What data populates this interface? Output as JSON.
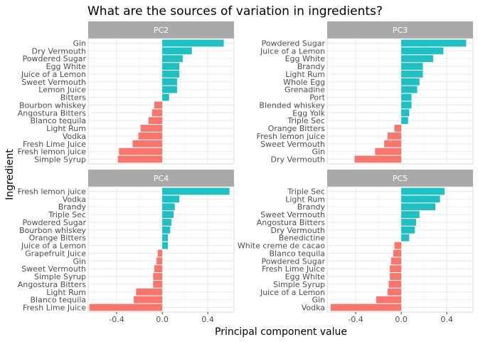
{
  "chart_data": {
    "type": "bar",
    "orientation": "horizontal",
    "title": "What are the sources of variation in ingredients?",
    "xlabel": "Principal component value",
    "ylabel": "Ingredient",
    "x_ticks": [
      "-0.4",
      "0.0",
      "0.4"
    ],
    "x_tick_values": [
      -0.4,
      0.0,
      0.4
    ],
    "xlim": [
      -0.65,
      0.63
    ],
    "grid": true,
    "legend": "none",
    "colors": {
      "positive": "#1fbfc4",
      "negative": "#f8766d",
      "strip": "#a9a9a9",
      "grid": "#ebebeb"
    },
    "panels": [
      {
        "name": "PC2",
        "categories": [
          "Gin",
          "Dry Vermouth",
          "Powdered Sugar",
          "Egg White",
          "Juice of a Lemon",
          "Sweet Vermouth",
          "Lemon Juice",
          "Bitters",
          "Bourbon whiskey",
          "Angostura Bitters",
          "Blanco tequila",
          "Light Rum",
          "Vodka",
          "Fresh Lime Juice",
          "Fresh lemon juice",
          "Simple Syrup"
        ],
        "values": [
          0.54,
          0.26,
          0.18,
          0.15,
          0.15,
          0.13,
          0.13,
          0.06,
          -0.07,
          -0.09,
          -0.12,
          -0.19,
          -0.21,
          -0.26,
          -0.38,
          -0.39
        ]
      },
      {
        "name": "PC3",
        "categories": [
          "Powdered Sugar",
          "Juice of a Lemon",
          "Egg White",
          "Brandy",
          "Light Rum",
          "Whole Egg",
          "Grenadine",
          "Port",
          "Blended whiskey",
          "Egg Yolk",
          "Triple Sec",
          "Orange Bitters",
          "Fresh lemon juice",
          "Sweet Vermouth",
          "Gin",
          "Dry Vermouth"
        ],
        "values": [
          0.57,
          0.37,
          0.28,
          0.19,
          0.19,
          0.16,
          0.14,
          0.09,
          0.09,
          0.07,
          0.06,
          -0.06,
          -0.12,
          -0.15,
          -0.23,
          -0.41
        ]
      },
      {
        "name": "PC4",
        "categories": [
          "Fresh lemon juice",
          "Vodka",
          "Brandy",
          "Triple Sec",
          "Powdered Sugar",
          "Bourbon whiskey",
          "Orange Bitters",
          "Juice of a Lemon",
          "Grapefruit Juice",
          "Gin",
          "Sweet Vermouth",
          "Simple Syrup",
          "Angostura Bitters",
          "Light Rum",
          "Blanco tequila",
          "Fresh Lime Juice"
        ],
        "values": [
          0.59,
          0.15,
          0.11,
          0.1,
          0.08,
          0.07,
          0.05,
          0.05,
          -0.04,
          -0.05,
          -0.07,
          -0.08,
          -0.08,
          -0.23,
          -0.25,
          -0.64
        ]
      },
      {
        "name": "PC5",
        "categories": [
          "Triple Sec",
          "Light Rum",
          "Brandy",
          "Sweet Vermouth",
          "Angostura Bitters",
          "Dry Vermouth",
          "Benedictine",
          "White creme de cacao",
          "Blanco tequila",
          "Powdered Sugar",
          "Fresh Lime Juice",
          "Egg White",
          "Simple Syrup",
          "Juice of a Lemon",
          "Gin",
          "Vodka"
        ],
        "values": [
          0.38,
          0.34,
          0.3,
          0.16,
          0.13,
          0.12,
          0.07,
          -0.06,
          -0.07,
          -0.09,
          -0.1,
          -0.1,
          -0.11,
          -0.12,
          -0.22,
          -0.62
        ]
      }
    ]
  }
}
